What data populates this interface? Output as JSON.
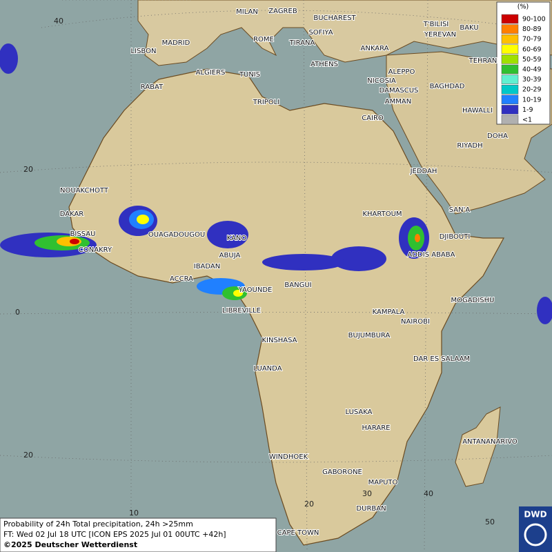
{
  "legend": {
    "title": "(%)",
    "items": [
      {
        "label": "90-100",
        "color": "#cc0000"
      },
      {
        "label": "80-89",
        "color": "#ff7f00"
      },
      {
        "label": "70-79",
        "color": "#ffc000"
      },
      {
        "label": "60-69",
        "color": "#ffff00"
      },
      {
        "label": "50-59",
        "color": "#a0e000"
      },
      {
        "label": "40-49",
        "color": "#30c030"
      },
      {
        "label": "30-39",
        "color": "#60f0d0"
      },
      {
        "label": "20-29",
        "color": "#00c8c8"
      },
      {
        "label": "10-19",
        "color": "#2080ff"
      },
      {
        "label": "1-9",
        "color": "#3030c0"
      },
      {
        "label": "<1",
        "color": "#b0b0b0"
      }
    ]
  },
  "cities": [
    "MILAN",
    "ZAGREB",
    "BUCHAREST",
    "T'BILISI",
    "BAKU",
    "ROME",
    "SOFIYA",
    "YEREVAN",
    "MADRID",
    "TIRANA",
    "ANKARA",
    "LISBON",
    "TEHRAN",
    "ATHENS",
    "ALGIERS",
    "TUNIS",
    "ALEPPO",
    "RABAT",
    "NICOSIA",
    "BAGHDAD",
    "DAMASCUS",
    "TRIPOLI",
    "AMMAN",
    "HAWALLI",
    "CAIRO",
    "DOHA",
    "RIYADH",
    "NOUAKCHOTT",
    "JEDDAH",
    "DAKAR",
    "KHARTOUM",
    "SAN'A",
    "BISSAU",
    "OUAGADOUGOU",
    "KANO",
    "DJIBOUTI",
    "CONAKRY",
    "ABUJA",
    "ADDIS ABABA",
    "IBADAN",
    "ACCRA",
    "YAOUNDE",
    "BANGUI",
    "MOGADISHU",
    "LIBREVILLE",
    "KAMPALA",
    "NAIROBI",
    "BUJUMBURA",
    "KINSHASA",
    "DAR ES SALAAM",
    "LUANDA",
    "LUSAKA",
    "HARARE",
    "ANTANANARIVO",
    "WINDHOEK",
    "GABORONE",
    "MAPUTO",
    "DURBAN",
    "CAPE TOWN"
  ],
  "latitude_labels": [
    "40",
    "20",
    "0",
    "20"
  ],
  "longitude_labels": [
    "10",
    "20",
    "30",
    "40",
    "50"
  ],
  "footer": {
    "line1": "Probability of 24h Total precipitation, 24h >25mm",
    "line2": "FT: Wed 02 Jul 18 UTC [ICON EPS 2025 Jul 01 00UTC +42h]",
    "line3": "©2025 Deutscher Wetterdienst"
  },
  "logo": "DWD"
}
